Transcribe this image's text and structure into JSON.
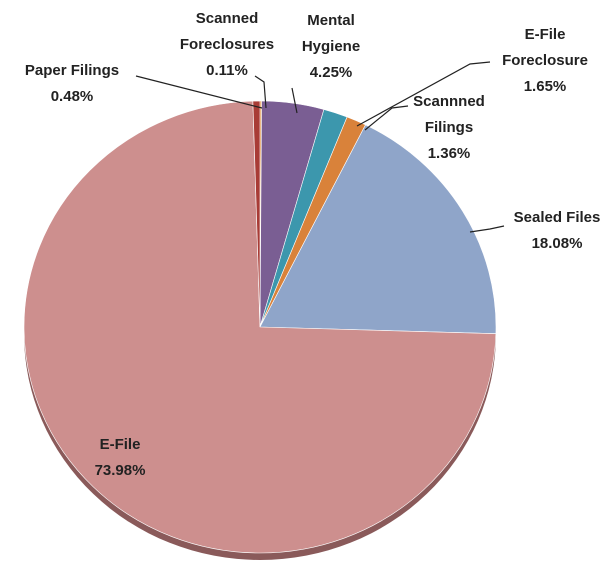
{
  "chart_data": {
    "type": "pie",
    "categories": [
      "Scanned Foreclosures",
      "Mental Hygiene",
      "E-File Foreclosure",
      "Scannned Filings",
      "Sealed Files",
      "E-File",
      "Paper Filings"
    ],
    "values": [
      0.11,
      4.25,
      1.65,
      1.36,
      18.08,
      73.98,
      0.48
    ],
    "value_labels": [
      "0.11%",
      "4.25%",
      "1.65%",
      "1.36%",
      "18.08%",
      "73.98%",
      "0.48%"
    ],
    "colors": [
      "#e08a2a",
      "#7a5e93",
      "#3c97ad",
      "#d9823a",
      "#8fa5c9",
      "#cd8f8e",
      "#a83c36"
    ]
  }
}
